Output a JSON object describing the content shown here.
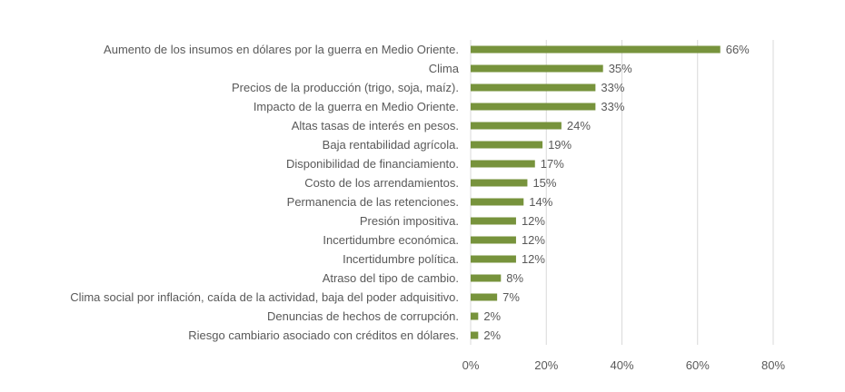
{
  "chart_data": {
    "type": "bar",
    "orientation": "horizontal",
    "categories": [
      "Aumento de los insumos en dólares por la guerra en Medio Oriente.",
      "Clima",
      "Precios de la producción (trigo, soja, maíz).",
      "Impacto de la guerra en Medio Oriente.",
      "Altas tasas de interés en pesos.",
      "Baja rentabilidad agrícola.",
      "Disponibilidad de financiamiento.",
      "Costo de los arrendamientos.",
      "Permanencia de las retenciones.",
      "Presión impositiva.",
      "Incertidumbre económica.",
      "Incertidumbre política.",
      "Atraso del tipo de cambio.",
      "Clima social por inflación, caída de la actividad, baja del poder adquisitivo.",
      "Denuncias de hechos de corrupción.",
      "Riesgo cambiario asociado con créditos en dólares."
    ],
    "values": [
      66,
      35,
      33,
      33,
      24,
      19,
      17,
      15,
      14,
      12,
      12,
      12,
      8,
      7,
      2,
      2
    ],
    "value_labels": [
      "66%",
      "35%",
      "33%",
      "33%",
      "24%",
      "19%",
      "17%",
      "15%",
      "14%",
      "12%",
      "12%",
      "12%",
      "8%",
      "7%",
      "2%",
      "2%"
    ],
    "xticks": [
      0,
      20,
      40,
      60,
      80
    ],
    "xtick_labels": [
      "0%",
      "20%",
      "40%",
      "60%",
      "80%"
    ],
    "xlim": [
      0,
      80
    ],
    "title": "",
    "xlabel": "",
    "ylabel": "",
    "grid": "vertical",
    "legend": "none",
    "bar_color": "#77933c",
    "text_color": "#595959",
    "grid_color": "#d9d9d9"
  }
}
